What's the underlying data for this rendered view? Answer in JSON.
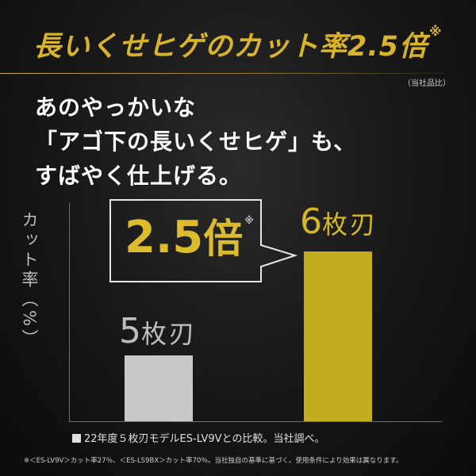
{
  "headline": {
    "text": "長いくせヒゲのカット率2.5倍",
    "mark": "※"
  },
  "note_top": "（当社品比）",
  "body_lines": [
    "あのやっかいな",
    "「アゴ下の長いくせヒゲ」も、",
    "すばやく仕上げる。"
  ],
  "callout": {
    "number": "2.5",
    "unit": "倍",
    "mark": "※"
  },
  "footnotes": {
    "line1": "22年度５枚刃モデルES-LV9Vとの比較。当社調べ。",
    "line2": "※＜ES-LV9V＞カット率27％、＜ES-LS9BX＞カット率70％。当社独自の基準に基づく。使用条件により効果は異なります。"
  },
  "colors": {
    "gold": "#d9b42a",
    "bar_gray": "#c9c9c9",
    "bar_gold": "#c3ac1e",
    "background": "#161616"
  },
  "chart_data": {
    "type": "bar",
    "ylabel": "カット率（%）",
    "categories": [
      "5枚刃",
      "6枚刃"
    ],
    "category_parts": [
      {
        "num": "5",
        "word": "枚刃"
      },
      {
        "num": "6",
        "word": "枚刃"
      }
    ],
    "values": [
      27,
      70
    ],
    "ylim": [
      0,
      87
    ],
    "grid": false
  }
}
